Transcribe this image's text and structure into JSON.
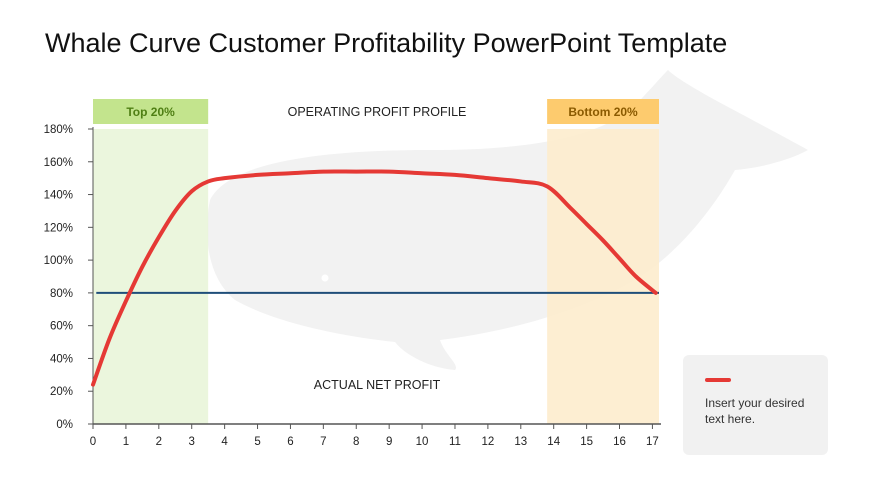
{
  "title": "Whale Curve Customer Profitability PowerPoint Template",
  "colors": {
    "curve": "#e53935",
    "baseline": "#1f4e79",
    "top_band": "#e9f5d9",
    "top_label_bg": "#c3e48d",
    "top_label_text": "#4f7f14",
    "bottom_band": "#fdeccd",
    "bottom_label_bg": "#fdcb6e",
    "bottom_label_text": "#8a5a00",
    "axis": "#555555",
    "whale": "#f2f2f2"
  },
  "chart_data": {
    "type": "line",
    "x_ticks": [
      0,
      1,
      2,
      3,
      4,
      5,
      6,
      7,
      8,
      9,
      10,
      11,
      12,
      13,
      14,
      15,
      16,
      17
    ],
    "y_ticks": [
      "0%",
      "20%",
      "40%",
      "60%",
      "80%",
      "100%",
      "120%",
      "140%",
      "160%",
      "180%"
    ],
    "xlim": [
      0,
      17.2
    ],
    "ylim": [
      0,
      180
    ],
    "series": [
      {
        "name": "",
        "x": [
          0,
          0.5,
          1,
          1.5,
          2,
          2.5,
          3,
          3.5,
          4,
          5,
          6,
          7,
          8,
          9,
          10,
          11,
          12,
          13,
          13.8,
          14.5,
          15,
          15.5,
          16,
          16.5,
          17.1
        ],
        "y": [
          24,
          52,
          75,
          96,
          114,
          130,
          142,
          148,
          150,
          152,
          153,
          154,
          154,
          154,
          153,
          152,
          150,
          148,
          145,
          132,
          122,
          112,
          101,
          90,
          80
        ]
      }
    ],
    "reference_line": {
      "y": 80
    },
    "bands": [
      {
        "label": "Top 20%",
        "from": 0,
        "to": 3.5
      },
      {
        "label": "Bottom 20%",
        "from": 13.8,
        "to": 17.2
      }
    ],
    "annotations": {
      "upper": "OPERATING PROFIT PROFILE",
      "lower": "ACTUAL NET PROFIT"
    },
    "legend_placement": "bottom-right"
  },
  "legend": {
    "text": "Insert your desired text here."
  }
}
